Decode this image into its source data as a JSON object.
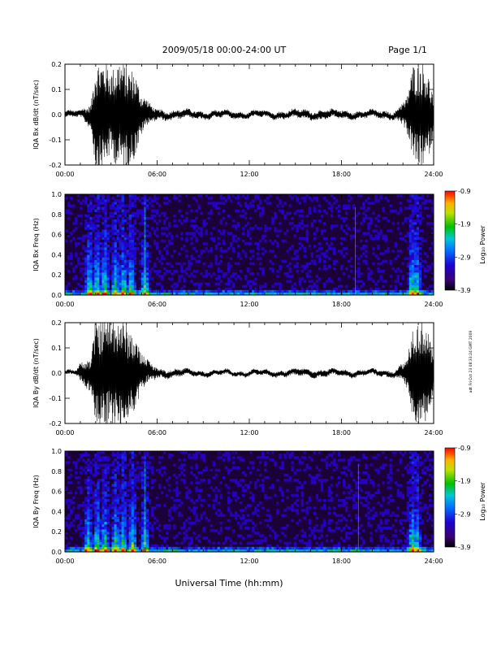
{
  "header": {
    "date_range": "2009/05/18  00:00-24:00 UT",
    "page": "Page 1/1"
  },
  "footer": {
    "xlabel": "Universal Time (hh:mm)"
  },
  "side_stamp": "adt Fri Oct 23 08:33:24 GMT 2009",
  "time_ticks": [
    "00:00",
    "06:00",
    "12:00",
    "18:00",
    "24:00"
  ],
  "chart_data": [
    {
      "type": "line",
      "ylabel": "IQA Bx dB/dt (nT/sec)",
      "xlim": [
        0,
        24
      ],
      "ylim": [
        -0.2,
        0.2
      ],
      "yticks": [
        "-0.2",
        "-0.1",
        "0.0",
        "0.1",
        "0.2"
      ],
      "activity_envelope": {
        "hours": [
          0.0,
          1.0,
          1.7,
          2.0,
          2.5,
          3.0,
          3.5,
          4.0,
          4.5,
          5.0,
          5.5,
          6.0,
          8.0,
          10.0,
          12.0,
          14.0,
          16.0,
          18.0,
          20.0,
          21.5,
          22.2,
          22.7,
          23.2,
          23.6,
          24.0
        ],
        "amplitude": [
          0.012,
          0.014,
          0.05,
          0.22,
          0.22,
          0.17,
          0.22,
          0.2,
          0.18,
          0.08,
          0.04,
          0.02,
          0.016,
          0.014,
          0.012,
          0.015,
          0.018,
          0.016,
          0.014,
          0.016,
          0.06,
          0.2,
          0.22,
          0.18,
          0.08
        ]
      }
    },
    {
      "type": "heatmap",
      "ylabel": "IQA Bx Freq (Hz)",
      "xlim": [
        0,
        24
      ],
      "ylim": [
        0.0,
        1.0
      ],
      "yticks": [
        "0.0",
        "0.2",
        "0.4",
        "0.6",
        "0.8",
        "1.0"
      ],
      "colorbar": {
        "label": "Log₁₀ Power",
        "range": [
          -3.9,
          -0.9
        ],
        "ticks": [
          "-0.9",
          "-1.9",
          "-2.9",
          "-3.9"
        ]
      },
      "bursts_hours": [
        1.6,
        2.1,
        2.6,
        3.3,
        3.8,
        4.3,
        5.2,
        22.6,
        22.9
      ],
      "lines_hours": [
        5.2,
        18.9
      ]
    },
    {
      "type": "line",
      "ylabel": "IQA By dB/dt (nT/sec)",
      "xlim": [
        0,
        24
      ],
      "ylim": [
        -0.2,
        0.2
      ],
      "yticks": [
        "-0.2",
        "-0.1",
        "0.0",
        "0.1",
        "0.2"
      ],
      "activity_envelope": {
        "hours": [
          0.0,
          0.7,
          1.0,
          1.7,
          2.0,
          2.5,
          3.0,
          3.5,
          4.0,
          4.5,
          5.0,
          5.5,
          6.0,
          8.0,
          10.0,
          12.0,
          14.0,
          16.0,
          18.0,
          20.0,
          21.5,
          22.2,
          22.7,
          23.2,
          23.6,
          24.0
        ],
        "amplitude": [
          0.008,
          0.01,
          0.035,
          0.07,
          0.22,
          0.22,
          0.22,
          0.22,
          0.2,
          0.15,
          0.08,
          0.04,
          0.02,
          0.012,
          0.01,
          0.01,
          0.012,
          0.015,
          0.012,
          0.012,
          0.014,
          0.05,
          0.2,
          0.22,
          0.18,
          0.08
        ]
      }
    },
    {
      "type": "heatmap",
      "ylabel": "IQA By Freq (Hz)",
      "xlim": [
        0,
        24
      ],
      "ylim": [
        0.0,
        1.0
      ],
      "yticks": [
        "0.0",
        "0.2",
        "0.4",
        "0.6",
        "0.8",
        "1.0"
      ],
      "colorbar": {
        "label": "Log₁₀ Power",
        "range": [
          -3.9,
          -0.9
        ],
        "ticks": [
          "-0.9",
          "-1.9",
          "-2.9",
          "-3.9"
        ]
      },
      "bursts_hours": [
        1.5,
        2.1,
        2.6,
        3.3,
        3.8,
        4.4,
        5.2,
        22.6,
        22.9
      ],
      "lines_hours": [
        5.2,
        19.1
      ]
    }
  ]
}
